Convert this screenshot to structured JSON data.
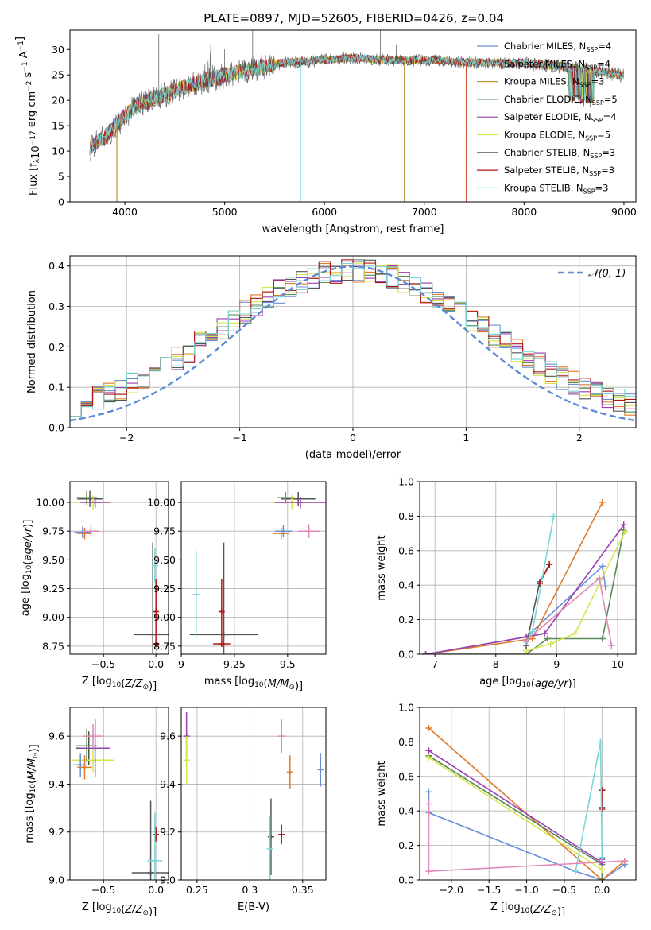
{
  "figure": {
    "title": "PLATE=0897, MJD=52605, FIBERID=0426, z=0.04"
  },
  "chart_data": [
    {
      "id": "spectrum",
      "type": "line",
      "xlabel": "wavelength [Angstrom, rest frame]",
      "ylabel": "Flux [f$_\\lambda$10$^{-17}$ erg cm$^{-2}$ s$^{-1}$ A$^{-1}$]",
      "ylabel_parts": {
        "base": "Flux [f",
        "sub1": "λ",
        "mid": "10",
        "sup1": "−17",
        "rest": " erg cm",
        "sup2": "−2",
        "rest2": " s",
        "sup3": "−1",
        "rest3": " A",
        "sup4": "−1",
        "end": "]"
      },
      "xlim": [
        3450,
        9120
      ],
      "ylim": [
        0,
        33.8
      ],
      "xticks": [
        4000,
        5000,
        6000,
        7000,
        8000,
        9000
      ],
      "yticks": [
        0,
        5,
        10,
        15,
        20,
        25,
        30
      ],
      "grid": false,
      "legend_position": "top-right",
      "legend": [
        {
          "label": "Chabrier MILES, N",
          "sub": "SSP",
          "tail": "=4",
          "color": "#6a8fd8"
        },
        {
          "label": "Salpeter MILES, N",
          "sub": "SSP",
          "tail": "=4",
          "color": "#e9a24e"
        },
        {
          "label": "Kroupa MILES, N",
          "sub": "SSP",
          "tail": "=3",
          "color": "#b8963a"
        },
        {
          "label": "Chabrier ELODIE, N",
          "sub": "SSP",
          "tail": "=5",
          "color": "#5a8a5a"
        },
        {
          "label": "Salpeter ELODIE, N",
          "sub": "SSP",
          "tail": "=4",
          "color": "#9b3fb0"
        },
        {
          "label": "Kroupa ELODIE, N",
          "sub": "SSP",
          "tail": "=5",
          "color": "#d6e64a"
        },
        {
          "label": "Chabrier STELIB, N",
          "sub": "SSP",
          "tail": "=3",
          "color": "#555555"
        },
        {
          "label": "Salpeter STELIB, N",
          "sub": "SSP",
          "tail": "=3",
          "color": "#b01818"
        },
        {
          "label": "Kroupa STELIB, N",
          "sub": "SSP",
          "tail": "=3",
          "color": "#7ad6d6"
        }
      ],
      "continuum_knots": [
        [
          3650,
          11
        ],
        [
          3800,
          13
        ],
        [
          3950,
          16
        ],
        [
          4100,
          19
        ],
        [
          4300,
          20.5
        ],
        [
          4500,
          22
        ],
        [
          4700,
          23.5
        ],
        [
          5000,
          25
        ],
        [
          5300,
          26.5
        ],
        [
          5600,
          27.5
        ],
        [
          6000,
          28
        ],
        [
          6300,
          28.5
        ],
        [
          6600,
          28
        ],
        [
          7000,
          28
        ],
        [
          7500,
          27.5
        ],
        [
          8000,
          27.5
        ],
        [
          8500,
          26.5
        ],
        [
          9000,
          25
        ]
      ],
      "dropouts": [
        {
          "x": 3920,
          "color": "#b8963a"
        },
        {
          "x": 5760,
          "color": "#7ad6d6"
        },
        {
          "x": 6800,
          "color": "#b8963a"
        },
        {
          "x": 7420,
          "color": "#cc5533"
        }
      ]
    },
    {
      "id": "residual_hist",
      "type": "bar",
      "xlabel": "(data-model)/error",
      "ylabel": "Normed distribution",
      "xlim": [
        -2.5,
        2.5
      ],
      "ylim": [
        0,
        0.425
      ],
      "xticks": [
        -2,
        -1,
        0,
        1,
        2
      ],
      "yticks": [
        0.0,
        0.1,
        0.2,
        0.3,
        0.4
      ],
      "grid": true,
      "legend_position": "top-right",
      "legend": [
        {
          "label": "$\\mathcal{N}(0,1)$",
          "text": "𝒩(0, 1)",
          "color": "#5b8ad6",
          "dash": true
        }
      ],
      "bin_width": 0.1,
      "series_colors": [
        "#6a8fd8",
        "#e07b2a",
        "#5a8a5a",
        "#9b3fb0",
        "#d6e64a",
        "#555555",
        "#b01818",
        "#7ad6d6"
      ]
    },
    {
      "id": "age_vs_Z",
      "type": "scatter",
      "xlabel": "Z [log$_{10}$(Z/Z$_\\odot$)]",
      "ylabel": "age  [log$_{10}$(age/yr)]",
      "xlim": [
        -0.82,
        0.12
      ],
      "ylim": [
        8.68,
        10.18
      ],
      "xticks": [
        -0.5,
        0.0
      ],
      "yticks": [
        8.75,
        9.0,
        9.25,
        9.5,
        9.75,
        10.0
      ],
      "grid": true,
      "points": [
        {
          "x": -0.63,
          "y": 10.03,
          "xerr": 0.12,
          "yerr": 0.07,
          "color": "#555555"
        },
        {
          "x": -0.6,
          "y": 10.0,
          "xerr": 0.18,
          "yerr": 0.06,
          "color": "#d6e64a"
        },
        {
          "x": -0.58,
          "y": 10.0,
          "xerr": 0.14,
          "yerr": 0.05,
          "color": "#9b3fb0"
        },
        {
          "x": -0.66,
          "y": 10.04,
          "xerr": 0.1,
          "yerr": 0.06,
          "color": "#5a8a5a"
        },
        {
          "x": -0.7,
          "y": 9.74,
          "xerr": 0.08,
          "yerr": 0.05,
          "color": "#6a8fd8"
        },
        {
          "x": -0.68,
          "y": 9.73,
          "xerr": 0.07,
          "yerr": 0.05,
          "color": "#e07b2a"
        },
        {
          "x": -0.62,
          "y": 9.75,
          "xerr": 0.08,
          "yerr": 0.05,
          "color": "#e088b8"
        },
        {
          "x": -0.03,
          "y": 8.85,
          "xerr": 0.18,
          "yerr": 0.8,
          "color": "#555555"
        },
        {
          "x": 0.0,
          "y": 9.05,
          "xerr": 0.02,
          "yerr": 0.28,
          "color": "#b01818"
        },
        {
          "x": 0.0,
          "y": 8.77,
          "xerr": 0.03,
          "yerr": 0.02,
          "color": "#b01818"
        },
        {
          "x": -0.01,
          "y": 9.45,
          "xerr": 0.01,
          "yerr": 0.15,
          "color": "#7ad6d6"
        }
      ]
    },
    {
      "id": "age_vs_mass",
      "type": "scatter",
      "xlabel": "mass [log$_{10}$(M/M$_\\odot$)]",
      "ylabel": "",
      "xlim": [
        9.0,
        9.68
      ],
      "ylim": [
        8.68,
        10.18
      ],
      "xticks": [
        9.0,
        9.25,
        9.5
      ],
      "yticks": [
        8.75,
        9.0,
        9.25,
        9.5,
        9.75,
        10.0
      ],
      "grid": true,
      "points": [
        {
          "x": 9.55,
          "y": 10.03,
          "xerr": 0.08,
          "yerr": 0.06,
          "color": "#555555"
        },
        {
          "x": 9.52,
          "y": 10.0,
          "xerr": 0.1,
          "yerr": 0.06,
          "color": "#d6e64a"
        },
        {
          "x": 9.56,
          "y": 10.0,
          "xerr": 0.12,
          "yerr": 0.05,
          "color": "#9b3fb0"
        },
        {
          "x": 9.49,
          "y": 10.04,
          "xerr": 0.04,
          "yerr": 0.05,
          "color": "#5a8a5a"
        },
        {
          "x": 9.48,
          "y": 9.75,
          "xerr": 0.04,
          "yerr": 0.05,
          "color": "#6a8fd8"
        },
        {
          "x": 9.47,
          "y": 9.73,
          "xerr": 0.04,
          "yerr": 0.05,
          "color": "#e07b2a"
        },
        {
          "x": 9.6,
          "y": 9.75,
          "xerr": 0.05,
          "yerr": 0.06,
          "color": "#e088b8"
        },
        {
          "x": 9.2,
          "y": 8.85,
          "xerr": 0.16,
          "yerr": 0.8,
          "color": "#555555"
        },
        {
          "x": 9.19,
          "y": 9.05,
          "xerr": 0.01,
          "yerr": 0.28,
          "color": "#b01818"
        },
        {
          "x": 9.19,
          "y": 8.77,
          "xerr": 0.04,
          "yerr": 0.02,
          "color": "#b01818"
        },
        {
          "x": 9.07,
          "y": 9.2,
          "xerr": 0.01,
          "yerr": 0.38,
          "color": "#7ad6d6"
        }
      ]
    },
    {
      "id": "weight_vs_age",
      "type": "line",
      "xlabel": "age  [log$_{10}$(age/yr)]",
      "ylabel": "mass weight",
      "xlim": [
        6.75,
        10.3
      ],
      "ylim": [
        0,
        1.0
      ],
      "xticks": [
        7,
        8,
        9,
        10
      ],
      "yticks": [
        0.0,
        0.2,
        0.4,
        0.6,
        0.8,
        1.0
      ],
      "grid": true,
      "series": [
        {
          "color": "#6a8fd8",
          "x": [
            6.85,
            8.5,
            9.75,
            9.8
          ],
          "y": [
            0.0,
            0.1,
            0.51,
            0.39
          ]
        },
        {
          "color": "#e07b2a",
          "x": [
            6.85,
            8.6,
            9.75
          ],
          "y": [
            0.0,
            0.09,
            0.88
          ]
        },
        {
          "color": "#5a8a5a",
          "x": [
            6.85,
            8.5,
            8.85,
            9.75,
            10.1
          ],
          "y": [
            0.0,
            0.0,
            0.09,
            0.09,
            0.72
          ]
        },
        {
          "color": "#9b3fb0",
          "x": [
            6.85,
            8.5,
            8.8,
            10.1
          ],
          "y": [
            0.0,
            0.1,
            0.12,
            0.75
          ]
        },
        {
          "color": "#d6e64a",
          "x": [
            8.5,
            8.9,
            9.3,
            10.12
          ],
          "y": [
            0.02,
            0.06,
            0.12,
            0.71
          ]
        },
        {
          "color": "#555555",
          "x": [
            8.5,
            8.72,
            8.88
          ],
          "y": [
            0.05,
            0.42,
            0.52
          ]
        },
        {
          "color": "#b01818",
          "x": [
            8.72,
            8.88
          ],
          "y": [
            0.41,
            0.52
          ]
        },
        {
          "color": "#7ad6d6",
          "x": [
            8.5,
            8.6,
            8.95
          ],
          "y": [
            0.07,
            0.13,
            0.8
          ]
        },
        {
          "color": "#e088b8",
          "x": [
            8.5,
            9.7,
            9.9
          ],
          "y": [
            0.08,
            0.44,
            0.05
          ]
        }
      ]
    },
    {
      "id": "mass_vs_Z",
      "type": "scatter",
      "xlabel": "Z [log$_{10}$(Z/Z$_\\odot$)]",
      "ylabel": "mass [log$_{10}$(M/M$_\\odot$)]",
      "xlim": [
        -0.82,
        0.12
      ],
      "ylim": [
        9.0,
        9.72
      ],
      "xticks": [
        -0.5,
        0.0
      ],
      "yticks": [
        9.0,
        9.2,
        9.4,
        9.6
      ],
      "grid": true,
      "points": [
        {
          "x": -0.64,
          "y": 9.55,
          "xerr": 0.12,
          "yerr": 0.07,
          "color": "#555555"
        },
        {
          "x": -0.6,
          "y": 9.5,
          "xerr": 0.2,
          "yerr": 0.05,
          "color": "#d6e64a"
        },
        {
          "x": -0.58,
          "y": 9.55,
          "xerr": 0.14,
          "yerr": 0.12,
          "color": "#9b3fb0"
        },
        {
          "x": -0.66,
          "y": 9.56,
          "xerr": 0.1,
          "yerr": 0.07,
          "color": "#5a8a5a"
        },
        {
          "x": -0.72,
          "y": 9.48,
          "xerr": 0.07,
          "yerr": 0.05,
          "color": "#6a8fd8"
        },
        {
          "x": -0.68,
          "y": 9.47,
          "xerr": 0.07,
          "yerr": 0.05,
          "color": "#e07b2a"
        },
        {
          "x": -0.6,
          "y": 9.6,
          "xerr": 0.1,
          "yerr": 0.05,
          "color": "#e088b8"
        },
        {
          "x": -0.05,
          "y": 9.03,
          "xerr": 0.18,
          "yerr": 0.3,
          "color": "#555555"
        },
        {
          "x": 0.0,
          "y": 9.19,
          "xerr": 0.02,
          "yerr": 0.03,
          "color": "#b01818"
        },
        {
          "x": -0.01,
          "y": 9.08,
          "xerr": 0.07,
          "yerr": 0.2,
          "color": "#7ad6d6"
        }
      ]
    },
    {
      "id": "mass_vs_EBV",
      "type": "scatter",
      "xlabel": "E(B-V)",
      "ylabel": "",
      "xlim": [
        0.235,
        0.372
      ],
      "ylim": [
        9.0,
        9.72
      ],
      "xticks": [
        0.25,
        0.3,
        0.35
      ],
      "yticks": [
        9.0,
        9.2,
        9.4,
        9.6
      ],
      "grid": true,
      "points": [
        {
          "x": 0.24,
          "y": 9.6,
          "xerr": 0.0,
          "yerr": 0.1,
          "color": "#9b3fb0"
        },
        {
          "x": 0.24,
          "y": 9.5,
          "xerr": 0.0,
          "yerr": 0.1,
          "color": "#d6e64a"
        },
        {
          "x": 0.33,
          "y": 9.6,
          "xerr": 0.0,
          "yerr": 0.07,
          "color": "#e088b8"
        },
        {
          "x": 0.338,
          "y": 9.45,
          "xerr": 0.0,
          "yerr": 0.07,
          "color": "#e07b2a"
        },
        {
          "x": 0.367,
          "y": 9.46,
          "xerr": 0.0,
          "yerr": 0.07,
          "color": "#6a8fd8"
        },
        {
          "x": 0.32,
          "y": 9.18,
          "xerr": 0.0,
          "yerr": 0.16,
          "color": "#555555"
        },
        {
          "x": 0.33,
          "y": 9.19,
          "xerr": 0.0,
          "yerr": 0.04,
          "color": "#b01818"
        },
        {
          "x": 0.319,
          "y": 9.13,
          "xerr": 0.0,
          "yerr": 0.14,
          "color": "#7ad6d6"
        }
      ]
    },
    {
      "id": "weight_vs_Z",
      "type": "line",
      "xlabel": "Z [log$_{10}$(Z/Z$_\\odot$)]",
      "ylabel": "mass weight",
      "xlim": [
        -2.42,
        0.45
      ],
      "ylim": [
        0,
        1.0
      ],
      "xticks": [
        -2.0,
        -1.5,
        -1.0,
        -0.5,
        0.0
      ],
      "yticks": [
        0.0,
        0.2,
        0.4,
        0.6,
        0.8,
        1.0
      ],
      "grid": true,
      "series": [
        {
          "color": "#6a8fd8",
          "x": [
            -2.3,
            -2.3,
            -0.35,
            0.0,
            0.3
          ],
          "y": [
            0.51,
            0.39,
            0.05,
            0.0,
            0.09
          ]
        },
        {
          "color": "#e07b2a",
          "x": [
            -2.3,
            0.0,
            0.3
          ],
          "y": [
            0.88,
            0.0,
            0.11
          ]
        },
        {
          "color": "#5a8a5a",
          "x": [
            -2.3,
            0.0,
            0.0
          ],
          "y": [
            0.72,
            0.09,
            0.0
          ]
        },
        {
          "color": "#9b3fb0",
          "x": [
            -2.3,
            0.0,
            0.0
          ],
          "y": [
            0.75,
            0.1,
            0.12
          ]
        },
        {
          "color": "#d6e64a",
          "x": [
            -2.3,
            0.0
          ],
          "y": [
            0.71,
            0.06
          ]
        },
        {
          "color": "#555555",
          "x": [
            0.0,
            0.0
          ],
          "y": [
            0.42,
            0.52
          ]
        },
        {
          "color": "#b01818",
          "x": [
            0.0,
            0.0
          ],
          "y": [
            0.41,
            0.52
          ]
        },
        {
          "color": "#7ad6d6",
          "x": [
            -0.35,
            -0.02,
            0.0
          ],
          "y": [
            0.05,
            0.8,
            0.13
          ]
        },
        {
          "color": "#e088b8",
          "x": [
            -2.3,
            -2.3,
            0.3
          ],
          "y": [
            0.44,
            0.05,
            0.11
          ]
        }
      ]
    }
  ]
}
